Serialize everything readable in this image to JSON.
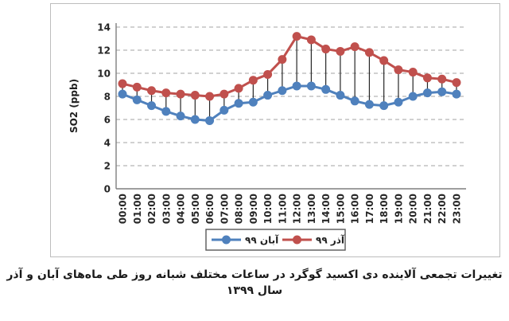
{
  "figure": {
    "caption": "تغییرات تجمعی آلاینده دی اکسید گوگرد در ساعات مختلف شبانه روز طی ماه‌های آبان و آذر سال ۱۳۹۹"
  },
  "chart_data": {
    "type": "line",
    "title": "",
    "xlabel": "",
    "ylabel": "SO2 (ppb)",
    "ylim": [
      0,
      14
    ],
    "yticks": [
      0,
      2,
      4,
      6,
      8,
      10,
      12,
      14
    ],
    "grid": "horizontal-dashed",
    "legend_position": "bottom-center",
    "high_low_lines": true,
    "categories": [
      "00:00",
      "01:00",
      "02:00",
      "03:00",
      "04:00",
      "05:00",
      "06:00",
      "07:00",
      "08:00",
      "09:00",
      "10:00",
      "11:00",
      "12:00",
      "13:00",
      "14:00",
      "15:00",
      "16:00",
      "17:00",
      "18:00",
      "19:00",
      "20:00",
      "21:00",
      "22:00",
      "23:00"
    ],
    "series": [
      {
        "name": "آبان ۹۹",
        "color": "#4F81BD",
        "values": [
          8.2,
          7.7,
          7.2,
          6.7,
          6.3,
          6.0,
          5.9,
          6.8,
          7.4,
          7.5,
          8.1,
          8.5,
          8.9,
          8.9,
          8.6,
          8.1,
          7.6,
          7.3,
          7.2,
          7.5,
          8.0,
          8.3,
          8.4,
          8.2
        ]
      },
      {
        "name": "آذر ۹۹",
        "color": "#C0504D",
        "values": [
          9.1,
          8.8,
          8.5,
          8.3,
          8.2,
          8.1,
          8.0,
          8.2,
          8.7,
          9.4,
          9.9,
          11.2,
          13.2,
          12.9,
          12.1,
          11.9,
          12.3,
          11.8,
          11.1,
          10.3,
          10.1,
          9.6,
          9.5,
          9.2
        ]
      }
    ],
    "colors": {
      "gridline": "#a3a3a3",
      "axis": "#7f7f7f",
      "drop_line": "#262626",
      "legend_border": "#595959",
      "frame_border": "#bdbdbd"
    }
  }
}
